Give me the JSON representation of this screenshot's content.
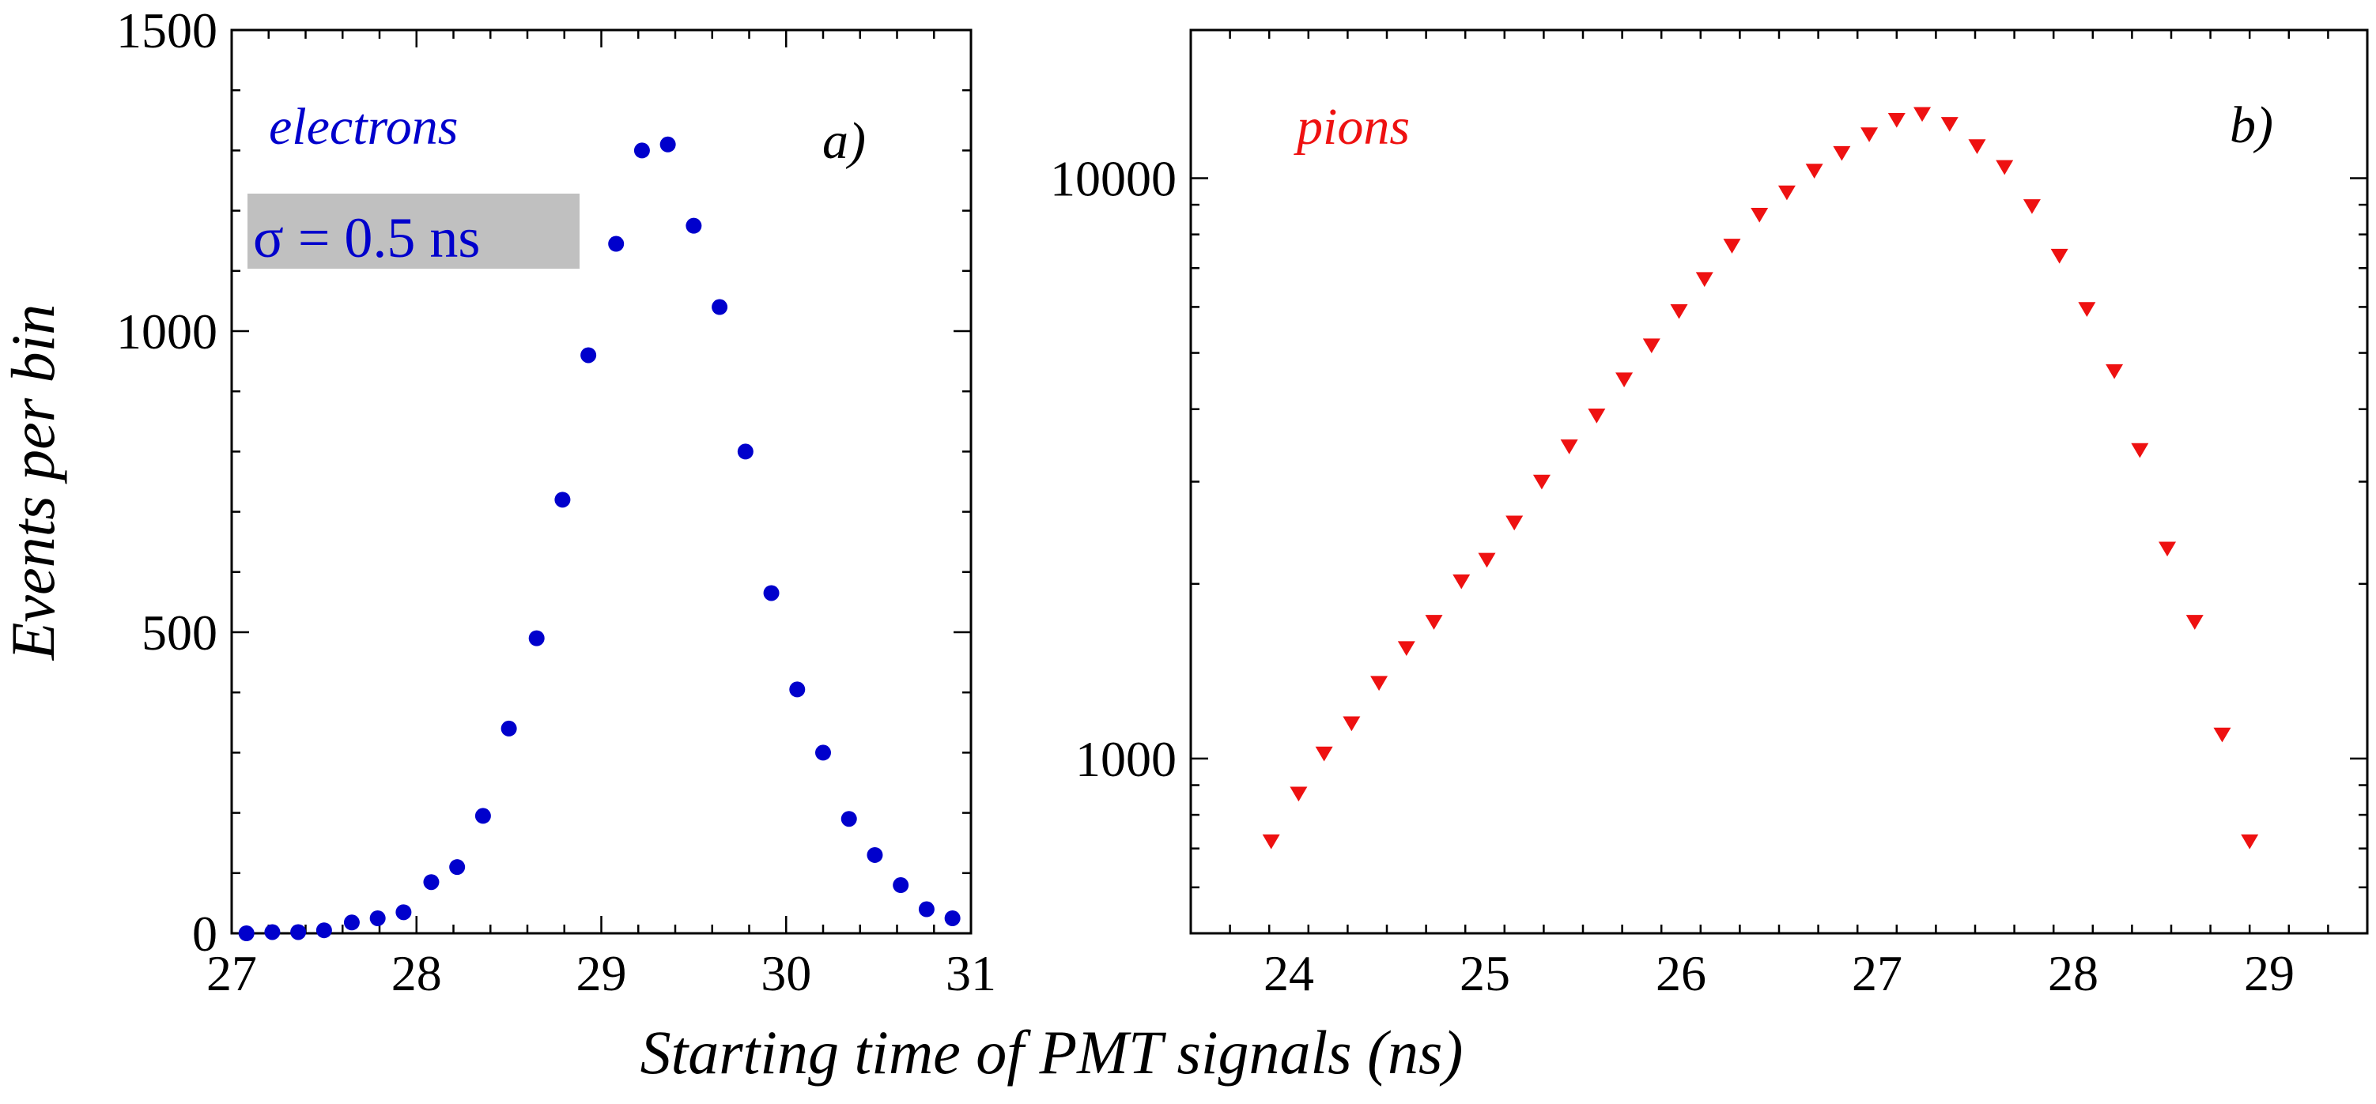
{
  "figure": {
    "xlabel": "Starting time of PMT signals (ns)",
    "ylabel": "Events per bin"
  },
  "chart_data": [
    {
      "type": "scatter",
      "panel_label": "a)",
      "series_label": "electrons",
      "annotation": "σ = 0.5 ns",
      "color": "#0000cc",
      "annotation_bg": "#c0c0c0",
      "marker": "circle",
      "xscale": "linear",
      "yscale": "linear",
      "xlim": [
        27,
        31
      ],
      "ylim": [
        0,
        1500
      ],
      "xticks": [
        27,
        28,
        29,
        30,
        31
      ],
      "xtick_labels": [
        "27",
        "28",
        "29",
        "30",
        "31"
      ],
      "yticks": [
        0,
        500,
        1000,
        1500
      ],
      "ytick_labels": [
        "0",
        "500",
        "1000",
        "1500"
      ],
      "x": [
        27.08,
        27.22,
        27.36,
        27.5,
        27.65,
        27.79,
        27.93,
        28.08,
        28.22,
        28.36,
        28.5,
        28.65,
        28.79,
        28.93,
        29.08,
        29.22,
        29.36,
        29.5,
        29.64,
        29.78,
        29.92,
        30.06,
        30.2,
        30.34,
        30.48,
        30.62,
        30.76,
        30.9
      ],
      "y": [
        0,
        2,
        2,
        5,
        18,
        25,
        35,
        85,
        110,
        195,
        340,
        490,
        720,
        960,
        1145,
        1300,
        1310,
        1175,
        1040,
        800,
        565,
        405,
        300,
        190,
        130,
        80,
        40,
        25
      ]
    },
    {
      "type": "scatter",
      "panel_label": "b)",
      "series_label": "pions",
      "color": "#ee1111",
      "marker": "triangle-down",
      "xscale": "linear",
      "yscale": "log",
      "xlim": [
        23.5,
        29.5
      ],
      "ylim": [
        500,
        18000
      ],
      "xticks": [
        24,
        25,
        26,
        27,
        28,
        29
      ],
      "xtick_labels": [
        "24",
        "25",
        "26",
        "27",
        "28",
        "29"
      ],
      "yticks": [
        1000,
        10000
      ],
      "ytick_labels": [
        "1000",
        "10000"
      ],
      "x": [
        23.91,
        24.05,
        24.18,
        24.32,
        24.46,
        24.6,
        24.74,
        24.88,
        25.01,
        25.15,
        25.29,
        25.43,
        25.57,
        25.71,
        25.85,
        25.99,
        26.12,
        26.26,
        26.4,
        26.54,
        26.68,
        26.82,
        26.96,
        27.1,
        27.23,
        27.37,
        27.51,
        27.65,
        27.79,
        27.93,
        28.07,
        28.21,
        28.34,
        28.48,
        28.62,
        28.76,
        28.9
      ],
      "y": [
        720,
        870,
        1020,
        1150,
        1350,
        1550,
        1720,
        2020,
        2200,
        2550,
        3000,
        3450,
        3900,
        4500,
        5150,
        5900,
        6700,
        7650,
        8650,
        9450,
        10300,
        11050,
        11900,
        12600,
        12900,
        12400,
        11350,
        10450,
        8950,
        7350,
        5950,
        4650,
        3400,
        2300,
        1720,
        1100,
        720
      ]
    }
  ]
}
